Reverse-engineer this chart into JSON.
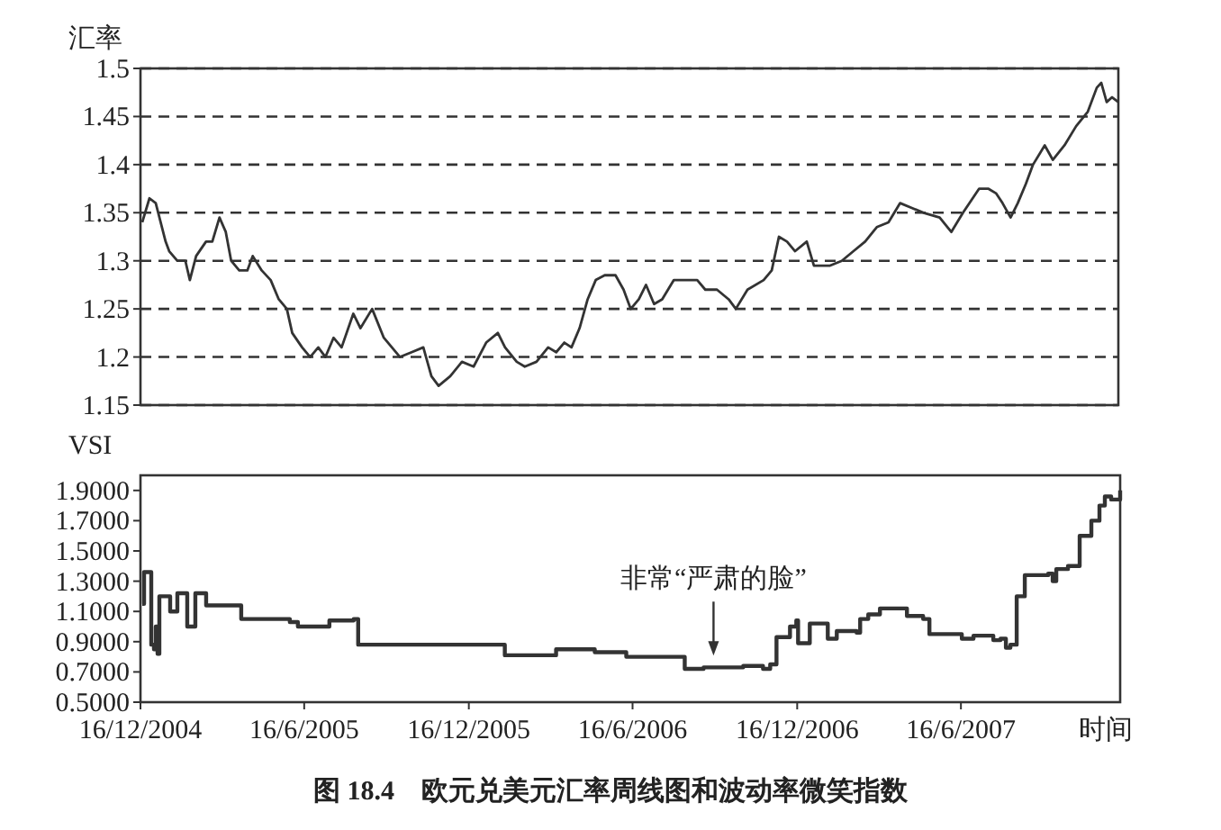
{
  "chart_data": [
    {
      "type": "line",
      "ylabel": "汇率",
      "color": "#333333",
      "grid": "y",
      "tick_labels": "y",
      "xlim": [
        "2004-12-16",
        "2007-12-10"
      ],
      "ylim": [
        1.15,
        1.5
      ],
      "yticks": [
        1.15,
        1.2,
        1.25,
        1.3,
        1.35,
        1.4,
        1.45,
        1.5
      ],
      "x": [
        "2004-12-18",
        "2004-12-26",
        "2005-01-02",
        "2005-01-13",
        "2005-01-17",
        "2005-01-26",
        "2005-02-04",
        "2005-02-09",
        "2005-02-16",
        "2005-02-27",
        "2005-03-06",
        "2005-03-14",
        "2005-03-21",
        "2005-03-27",
        "2005-04-05",
        "2005-04-14",
        "2005-04-20",
        "2005-04-30",
        "2005-05-10",
        "2005-05-19",
        "2005-05-28",
        "2005-06-03",
        "2005-06-14",
        "2005-06-23",
        "2005-07-02",
        "2005-07-10",
        "2005-07-19",
        "2005-07-28",
        "2005-08-10",
        "2005-08-18",
        "2005-08-31",
        "2005-09-13",
        "2005-09-22",
        "2005-10-01",
        "2005-10-14",
        "2005-10-27",
        "2005-11-05",
        "2005-11-13",
        "2005-11-26",
        "2005-12-09",
        "2005-12-22",
        "2006-01-05",
        "2006-01-18",
        "2006-01-26",
        "2006-02-08",
        "2006-02-17",
        "2006-03-02",
        "2006-03-15",
        "2006-03-24",
        "2006-04-02",
        "2006-04-10",
        "2006-04-19",
        "2006-04-28",
        "2006-05-07",
        "2006-05-17",
        "2006-05-29",
        "2006-06-07",
        "2006-06-15",
        "2006-06-24",
        "2006-07-02",
        "2006-07-11",
        "2006-07-20",
        "2006-08-02",
        "2006-08-15",
        "2006-08-28",
        "2006-09-06",
        "2006-09-19",
        "2006-10-02",
        "2006-10-10",
        "2006-10-23",
        "2006-11-10",
        "2006-11-19",
        "2006-11-27",
        "2006-12-06",
        "2006-12-15",
        "2006-12-28",
        "2007-01-05",
        "2007-01-23",
        "2007-02-05",
        "2007-02-18",
        "2007-03-03",
        "2007-03-16",
        "2007-03-29",
        "2007-04-11",
        "2007-04-24",
        "2007-05-07",
        "2007-05-25",
        "2007-06-07",
        "2007-06-20",
        "2007-07-08",
        "2007-07-18",
        "2007-07-27",
        "2007-08-03",
        "2007-08-12",
        "2007-08-20",
        "2007-08-29",
        "2007-09-06",
        "2007-09-19",
        "2007-09-28",
        "2007-10-11",
        "2007-10-24",
        "2007-11-06",
        "2007-11-16",
        "2007-11-21",
        "2007-11-27",
        "2007-12-03",
        "2007-12-10"
      ],
      "values": [
        1.34,
        1.365,
        1.36,
        1.32,
        1.31,
        1.3,
        1.3,
        1.28,
        1.305,
        1.32,
        1.32,
        1.345,
        1.33,
        1.3,
        1.29,
        1.29,
        1.305,
        1.29,
        1.28,
        1.26,
        1.25,
        1.225,
        1.21,
        1.2,
        1.21,
        1.2,
        1.22,
        1.21,
        1.245,
        1.23,
        1.25,
        1.22,
        1.21,
        1.2,
        1.205,
        1.21,
        1.18,
        1.17,
        1.18,
        1.195,
        1.19,
        1.215,
        1.225,
        1.21,
        1.195,
        1.19,
        1.195,
        1.21,
        1.205,
        1.215,
        1.21,
        1.23,
        1.26,
        1.28,
        1.285,
        1.285,
        1.27,
        1.25,
        1.26,
        1.275,
        1.255,
        1.26,
        1.28,
        1.28,
        1.28,
        1.27,
        1.27,
        1.26,
        1.25,
        1.27,
        1.28,
        1.29,
        1.325,
        1.32,
        1.31,
        1.32,
        1.295,
        1.295,
        1.3,
        1.31,
        1.32,
        1.335,
        1.34,
        1.36,
        1.355,
        1.35,
        1.345,
        1.33,
        1.35,
        1.375,
        1.375,
        1.37,
        1.36,
        1.345,
        1.36,
        1.38,
        1.4,
        1.42,
        1.405,
        1.42,
        1.44,
        1.455,
        1.48,
        1.485,
        1.465,
        1.47,
        1.465
      ]
    },
    {
      "type": "step",
      "ylabel": "VSI",
      "xlabel": "时间",
      "color": "#333333",
      "xlim": [
        "2004-12-16",
        "2007-12-10"
      ],
      "ylim": [
        0.5,
        2.0
      ],
      "yticks": [
        {
          "value": 0.5,
          "label": "0.5000"
        },
        {
          "value": 0.7,
          "label": "0.7000"
        },
        {
          "value": 0.9,
          "label": "0.9000"
        },
        {
          "value": 1.1,
          "label": "1.1000"
        },
        {
          "value": 1.3,
          "label": "1.3000"
        },
        {
          "value": 1.5,
          "label": "1.5000"
        },
        {
          "value": 1.7,
          "label": "1.7000"
        },
        {
          "value": 1.9,
          "label": "1.9000"
        }
      ],
      "xticks": [
        {
          "value": "2004-12-16",
          "label": "16/12/2004"
        },
        {
          "value": "2005-06-16",
          "label": "16/6/2005"
        },
        {
          "value": "2005-12-16",
          "label": "16/12/2005"
        },
        {
          "value": "2006-06-16",
          "label": "16/6/2006"
        },
        {
          "value": "2006-12-16",
          "label": "16/12/2006"
        },
        {
          "value": "2007-06-16",
          "label": "16/6/2007"
        }
      ],
      "x": [
        "2004-12-18",
        "2004-12-20",
        "2004-12-26",
        "2004-12-28",
        "2004-12-31",
        "2005-01-02",
        "2005-01-04",
        "2005-01-06",
        "2005-01-17",
        "2005-01-18",
        "2005-01-25",
        "2005-01-26",
        "2005-02-05",
        "2005-02-06",
        "2005-02-14",
        "2005-02-15",
        "2005-02-23",
        "2005-02-27",
        "2005-04-05",
        "2005-04-07",
        "2005-05-31",
        "2005-06-09",
        "2005-07-05",
        "2005-07-14",
        "2005-08-10",
        "2005-08-15",
        "2005-11-12",
        "2006-01-21",
        "2006-01-25",
        "2006-03-14",
        "2006-03-23",
        "2006-05-05",
        "2006-06-09",
        "2006-08-08",
        "2006-08-13",
        "2006-09-03",
        "2006-10-17",
        "2006-11-08",
        "2006-11-16",
        "2006-11-23",
        "2006-12-08",
        "2006-12-15",
        "2006-12-17",
        "2006-12-25",
        "2006-12-30",
        "2007-01-12",
        "2007-01-19",
        "2007-01-29",
        "2007-02-20",
        "2007-02-24",
        "2007-03-05",
        "2007-03-18",
        "2007-04-17",
        "2007-05-05",
        "2007-05-12",
        "2007-06-04",
        "2007-06-17",
        "2007-06-30",
        "2007-07-22",
        "2007-07-30",
        "2007-08-05",
        "2007-08-10",
        "2007-08-17",
        "2007-08-26",
        "2007-09-21",
        "2007-09-26",
        "2007-09-30",
        "2007-10-13",
        "2007-10-26",
        "2007-11-08",
        "2007-11-17",
        "2007-11-23",
        "2007-11-30",
        "2007-12-06",
        "2007-12-10"
      ],
      "values": [
        1.15,
        1.36,
        1.36,
        0.88,
        0.85,
        1.0,
        0.82,
        1.2,
        1.2,
        1.1,
        1.1,
        1.22,
        1.22,
        1.0,
        1.0,
        1.22,
        1.22,
        1.14,
        1.14,
        1.05,
        1.03,
        1.0,
        1.0,
        1.04,
        1.05,
        0.88,
        0.88,
        0.88,
        0.81,
        0.81,
        0.85,
        0.83,
        0.8,
        0.8,
        0.72,
        0.73,
        0.74,
        0.72,
        0.75,
        0.93,
        1.0,
        1.04,
        0.89,
        0.89,
        1.02,
        1.02,
        0.92,
        0.97,
        0.96,
        1.05,
        1.08,
        1.12,
        1.07,
        1.05,
        0.95,
        0.95,
        0.92,
        0.94,
        0.91,
        0.92,
        0.86,
        0.88,
        1.2,
        1.34,
        1.35,
        1.3,
        1.38,
        1.4,
        1.6,
        1.7,
        1.8,
        1.86,
        1.84,
        1.84,
        1.9
      ],
      "annotations": [
        {
          "text": "非常“严肃的脸”",
          "x": "2006-09-14",
          "y": 0.76
        },
        "图 18.4　欧元兑美元汇率周线图和波动率微笑指数"
      ]
    }
  ]
}
